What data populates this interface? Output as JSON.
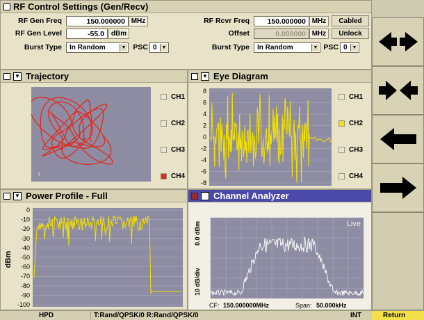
{
  "rf": {
    "title": "RF Control Settings (Gen/Recv)",
    "gen_freq_label": "RF Gen Freq",
    "gen_freq_value": "150.000000",
    "gen_freq_unit": "MHz",
    "gen_level_label": "RF Gen Level",
    "gen_level_value": "-55.0",
    "gen_level_unit": "dBm",
    "burst_label": "Burst Type",
    "burst_value": "In Random",
    "psc_label": "PSC",
    "psc_value": "0",
    "rcvr_freq_label": "RF Rcvr Freq",
    "rcvr_freq_value": "150.000000",
    "rcvr_freq_unit": "MHz",
    "cabled_label": "Cabled",
    "offset_label": "Offset",
    "offset_value": "0.000000",
    "offset_unit": "MHz",
    "unlock_label": "Unlock",
    "burst2_label": "Burst Type",
    "burst2_value": "In Random",
    "psc2_label": "PSC",
    "psc2_value": "0"
  },
  "trajectory": {
    "title": "Trajectory",
    "channels": [
      "CH1",
      "CH2",
      "CH3",
      "CH4"
    ],
    "active_channel": "CH4",
    "color": "#e02a1e"
  },
  "eye": {
    "title": "Eye Diagram",
    "y_ticks": [
      "8",
      "6",
      "4",
      "2",
      "0",
      "-2",
      "-4",
      "-6",
      "-8"
    ],
    "channels": [
      "CH1",
      "CH2",
      "CH3",
      "CH4"
    ],
    "active_channel": "CH2",
    "color": "#f2e000"
  },
  "power": {
    "title": "Power Profile - Full",
    "y_ticks": [
      "0",
      "-10",
      "-20",
      "-30",
      "-40",
      "-50",
      "-60",
      "-70",
      "-80",
      "-90",
      "-100"
    ],
    "ylabel": "dBm",
    "color": "#f2e000"
  },
  "analyzer": {
    "title": "Channel Analyzer",
    "live_label": "Live",
    "ylabel_scale": "10 dB/div",
    "ylabel_ref": "0.0 dBm",
    "cf_label": "CF:",
    "cf_value": "150.000000MHz",
    "span_label": "Span:",
    "span_value": "50.000kHz"
  },
  "status": {
    "mode": "HPD",
    "config": "T:Rand/QPSK/0  R:Rand/QPSK/0",
    "ref": "INT",
    "return_label": "Return",
    "return_color": "#f4e04a"
  },
  "side_buttons": [
    "left-right-arrows-icon",
    "converging-arrows-icon",
    "left-arrow-icon",
    "right-arrow-icon"
  ]
}
